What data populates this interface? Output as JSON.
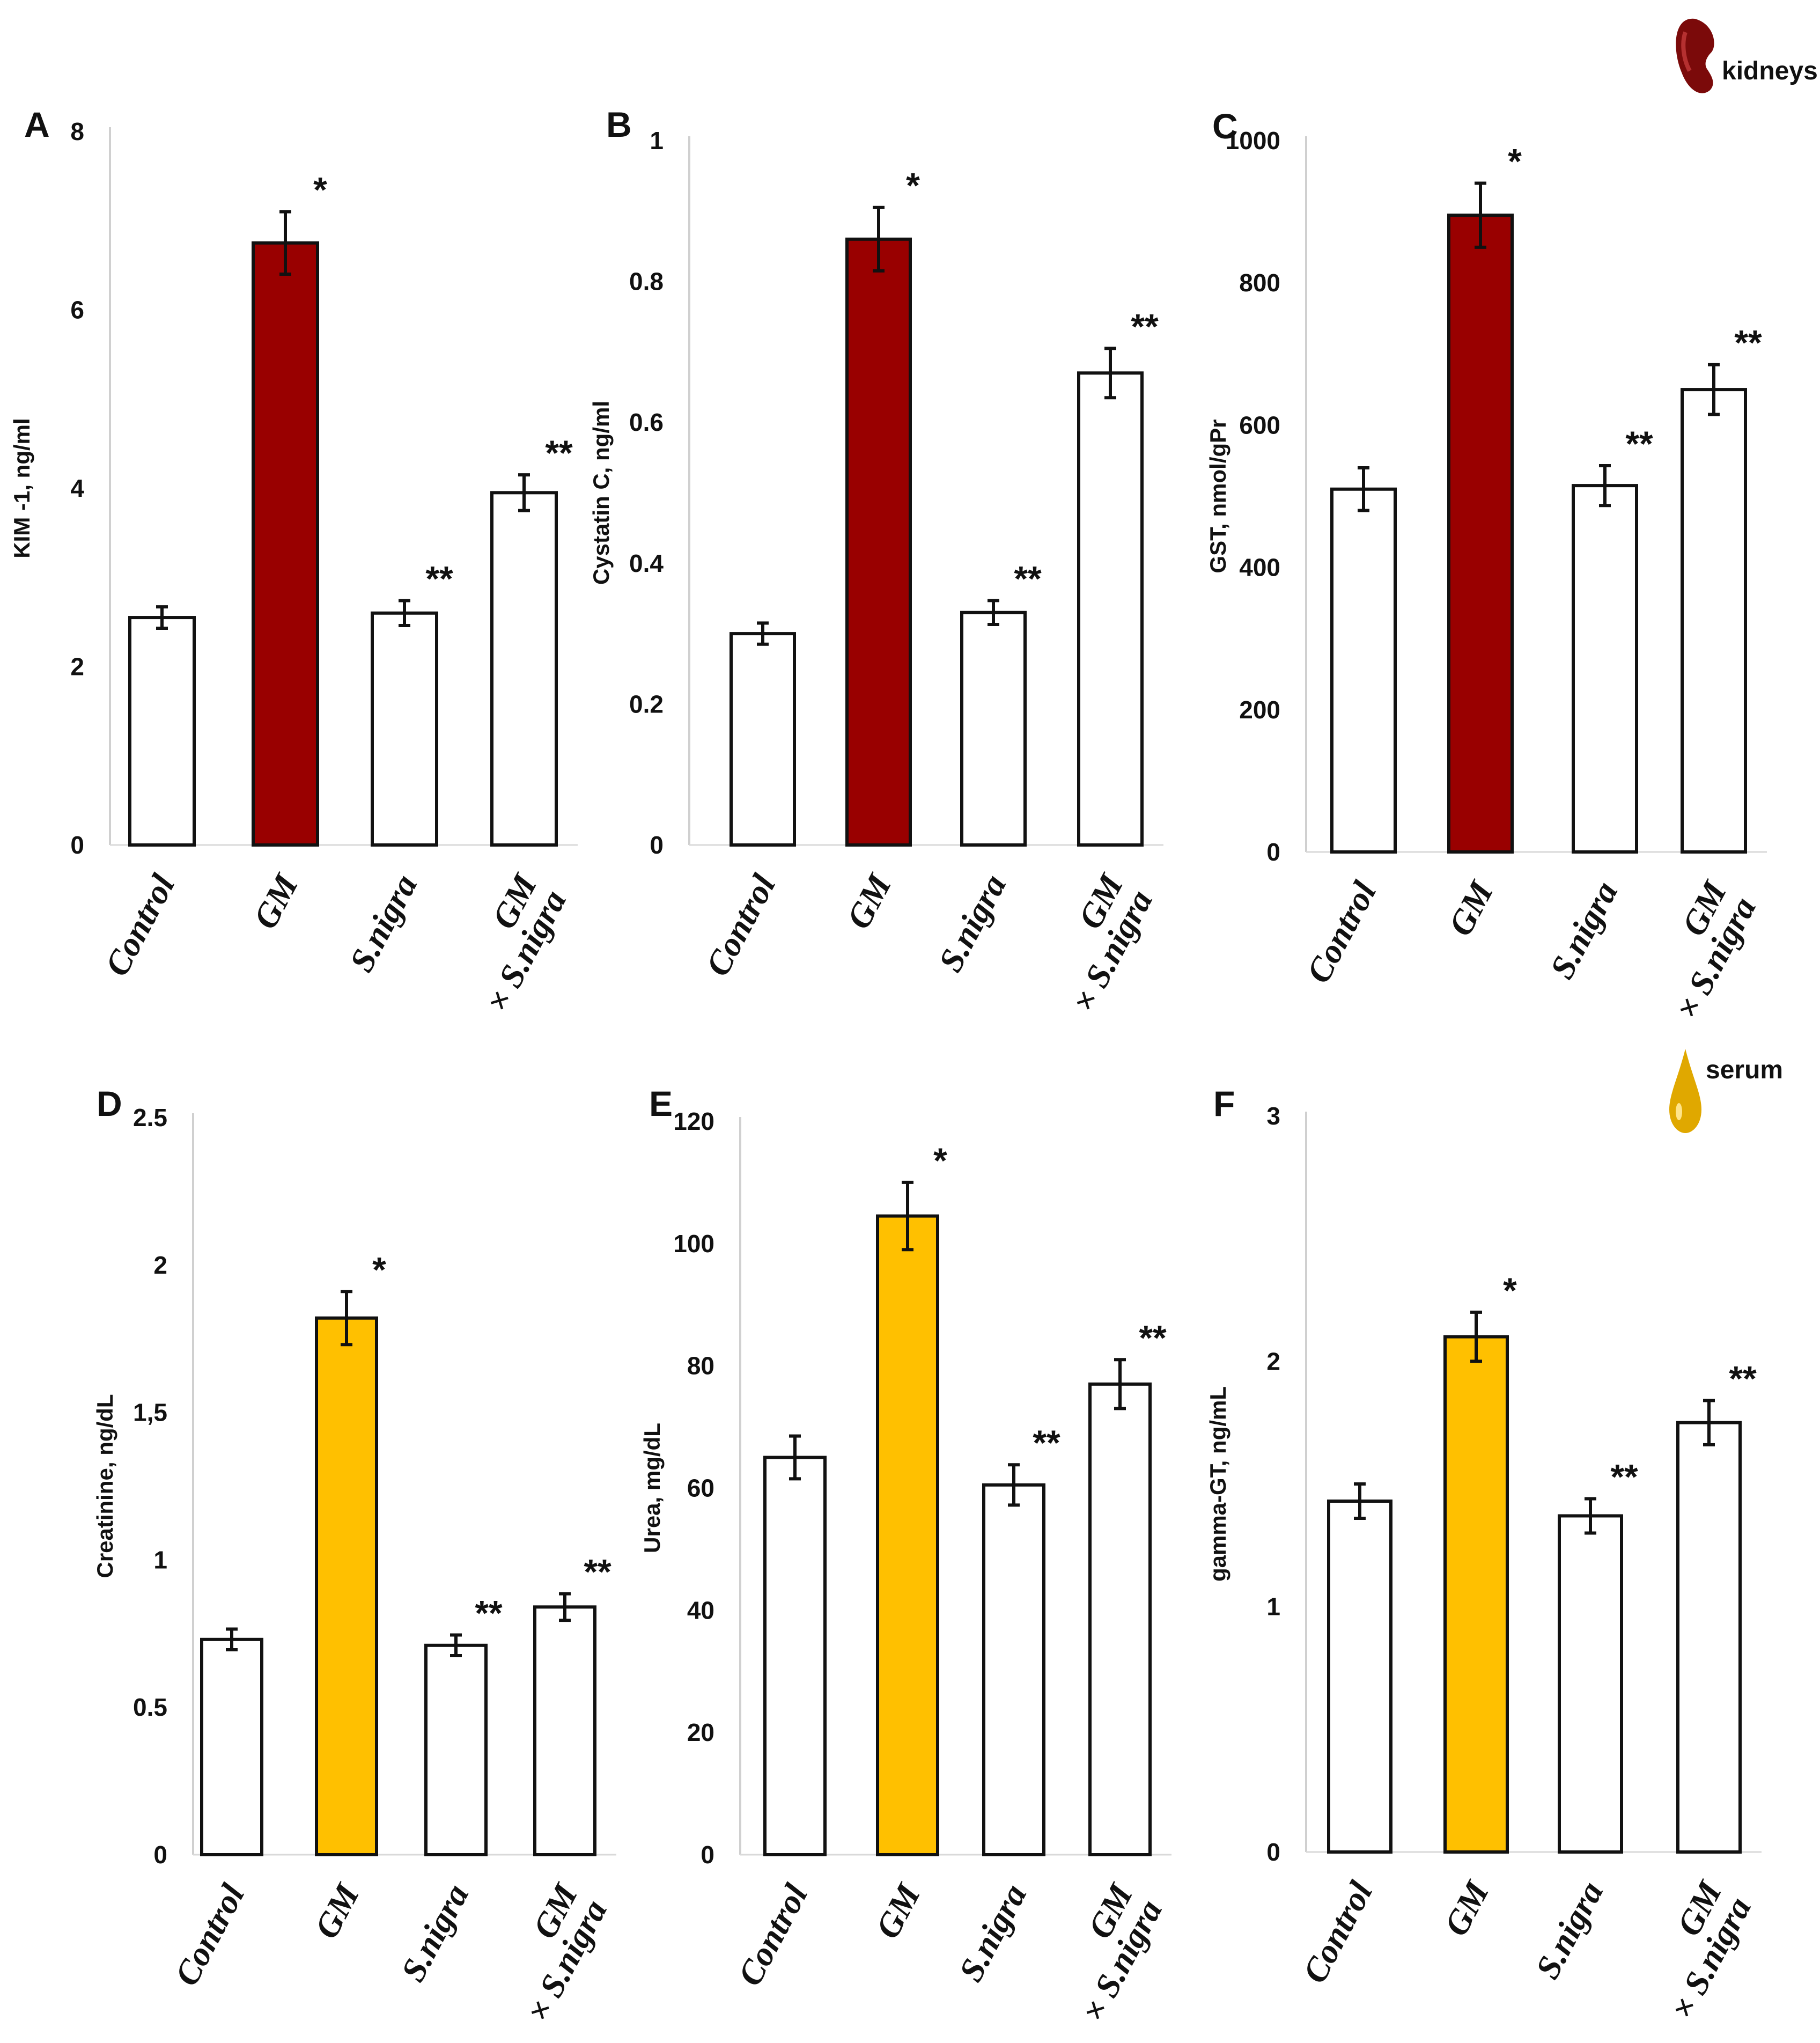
{
  "badges": {
    "kidneys": {
      "label": "kidneys",
      "color": "#7b0a0a"
    },
    "serum": {
      "label": "serum",
      "color": "#e0a800"
    }
  },
  "colors": {
    "kidney_highlight": "#990000",
    "serum_highlight": "#ffc000",
    "plain": "#ffffff"
  },
  "chart_data": [
    {
      "panel": "A",
      "type": "bar",
      "tissue": "kidneys",
      "categories": [
        "Control",
        "GM",
        "S.nigra",
        "GM\n× S.nigra"
      ],
      "values": [
        2.55,
        6.75,
        2.6,
        3.95
      ],
      "errors": [
        0.12,
        0.35,
        0.14,
        0.2
      ],
      "significance": [
        "",
        "*",
        "**",
        "**"
      ],
      "highlight_color": "#990000",
      "ylabel": "KIM -1, ng/ml",
      "ylim": [
        0,
        8
      ],
      "yticks": [
        "0",
        "2",
        "4",
        "6",
        "8"
      ]
    },
    {
      "panel": "B",
      "type": "bar",
      "tissue": "kidneys",
      "categories": [
        "Control",
        "GM",
        "S.nigra",
        "GM\n× S.nigra"
      ],
      "values": [
        0.3,
        0.86,
        0.33,
        0.67
      ],
      "errors": [
        0.015,
        0.045,
        0.017,
        0.035
      ],
      "significance": [
        "",
        "*",
        "**",
        "**"
      ],
      "highlight_color": "#990000",
      "ylabel": "Cystatin C, ng/ml",
      "ylim": [
        0,
        1
      ],
      "yticks": [
        "0",
        "0.2",
        "0.4",
        "0.6",
        "0.8",
        "1"
      ]
    },
    {
      "panel": "C",
      "type": "bar",
      "tissue": "kidneys",
      "categories": [
        "Control",
        "GM",
        "S.nigra",
        "GM\n× S.nigra"
      ],
      "values": [
        510,
        895,
        515,
        650
      ],
      "errors": [
        30,
        45,
        28,
        35
      ],
      "significance": [
        "",
        "*",
        "**",
        "**"
      ],
      "highlight_color": "#990000",
      "ylabel": "GST, nmol/gPr",
      "ylim": [
        0,
        1000
      ],
      "yticks": [
        "0",
        "200",
        "400",
        "600",
        "800",
        "1000"
      ]
    },
    {
      "panel": "D",
      "type": "bar",
      "tissue": "serum",
      "categories": [
        "Control",
        "GM",
        "S.nigra",
        "GM\n× S.nigra"
      ],
      "values": [
        0.73,
        1.82,
        0.71,
        0.84
      ],
      "errors": [
        0.035,
        0.09,
        0.035,
        0.045
      ],
      "significance": [
        "",
        "*",
        "**",
        "**"
      ],
      "highlight_color": "#ffc000",
      "ylabel": "Creatinine, ng/dL",
      "ylim": [
        0,
        2.5
      ],
      "yticks": [
        "0",
        "0.5",
        "1",
        "1,5",
        "2",
        "2.5"
      ]
    },
    {
      "panel": "E",
      "type": "bar",
      "tissue": "serum",
      "categories": [
        "Control",
        "GM",
        "S.nigra",
        "GM\n× S.nigra"
      ],
      "values": [
        65,
        104.5,
        60.5,
        77
      ],
      "errors": [
        3.5,
        5.5,
        3.3,
        4
      ],
      "significance": [
        "",
        "*",
        "**",
        "**"
      ],
      "highlight_color": "#ffc000",
      "ylabel": "Urea, mg/dL",
      "ylim": [
        0,
        120
      ],
      "yticks": [
        "0",
        "20",
        "40",
        "60",
        "80",
        "100",
        "120"
      ]
    },
    {
      "panel": "F",
      "type": "bar",
      "tissue": "serum",
      "categories": [
        "Control",
        "GM",
        "S.nigra",
        "GM\n× S.nigra"
      ],
      "values": [
        1.43,
        2.1,
        1.37,
        1.75
      ],
      "errors": [
        0.07,
        0.1,
        0.07,
        0.09
      ],
      "significance": [
        "",
        "*",
        "**",
        "**"
      ],
      "highlight_color": "#ffc000",
      "ylabel": "gamma-GT, ng/mL",
      "ylim": [
        0,
        3
      ],
      "yticks": [
        "0",
        "1",
        "2",
        "3"
      ]
    }
  ]
}
